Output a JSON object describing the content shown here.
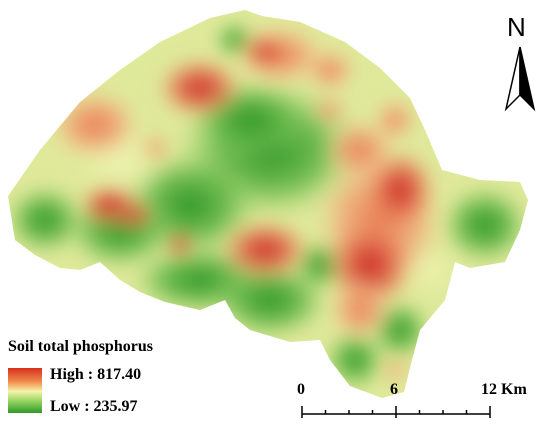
{
  "legend": {
    "title": "Soil total phosphorus",
    "high_label": "High : 817.40",
    "low_label": "Low : 235.97",
    "high_color": "#d7301f",
    "mid_color": "#f6f4a8",
    "low_color": "#2e9a2a"
  },
  "scale_bar": {
    "tick_0": "0",
    "tick_mid": "6",
    "tick_end": "12 Km"
  },
  "north_arrow": {
    "letter": "N",
    "icon": "north-arrow-icon"
  }
}
